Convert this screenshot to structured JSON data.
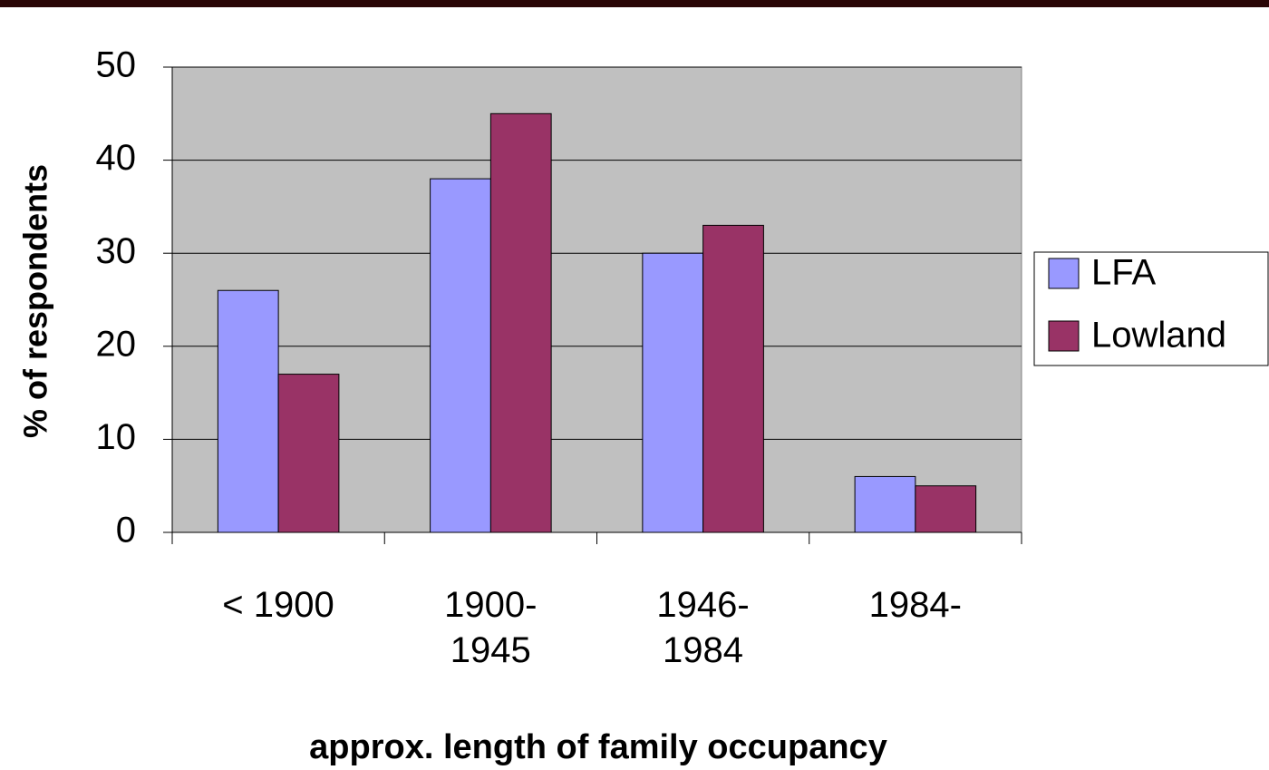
{
  "chart_data": {
    "type": "bar",
    "categories": [
      "< 1900",
      "1900-\n1945",
      "1946-\n1984",
      "1984-"
    ],
    "series": [
      {
        "name": "LFA",
        "color": "#9999ff",
        "values": [
          26,
          38,
          30,
          6
        ]
      },
      {
        "name": "Lowland",
        "color": "#993366",
        "values": [
          17,
          45,
          33,
          5
        ]
      }
    ],
    "ylim": [
      0,
      50
    ],
    "yticks": [
      0,
      10,
      20,
      30,
      40,
      50
    ],
    "y_label": "% of respondents",
    "x_label": "approx. length of family occupancy",
    "grid": true,
    "legend": "right"
  }
}
